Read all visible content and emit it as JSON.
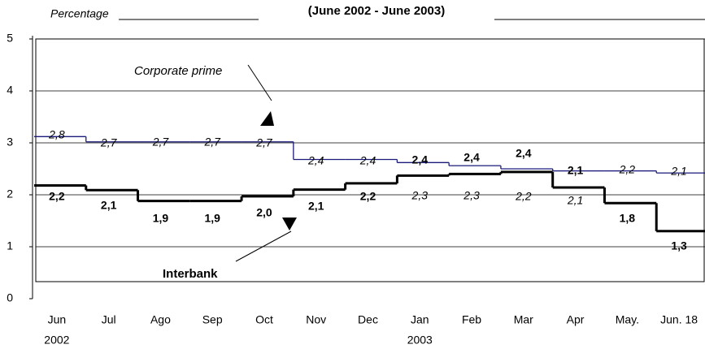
{
  "chart_data": {
    "type": "step-line",
    "title": "(June 2002 - June 2003)",
    "y_label": "Percentage",
    "categories": [
      "Jun",
      "Jul",
      "Ago",
      "Sep",
      "Oct",
      "Nov",
      "Dec",
      "Jan",
      "Feb",
      "Mar",
      "Apr",
      "May.",
      "Jun. 18"
    ],
    "x_sublabels": [
      "2002",
      null,
      null,
      null,
      null,
      null,
      null,
      "2003",
      null,
      null,
      null,
      null,
      null
    ],
    "ylim": [
      0,
      5
    ],
    "yticks": [
      0,
      1,
      2,
      3,
      4,
      5
    ],
    "grid": true,
    "series": [
      {
        "name": "Corporate prime",
        "color": "#1a1a7a",
        "values": [
          3.12,
          3.02,
          3.02,
          3.02,
          3.02,
          2.68,
          2.68,
          2.62,
          2.56,
          2.5,
          2.46,
          2.46,
          2.42
        ]
      },
      {
        "name": "Interbank",
        "color": "#000000",
        "values": [
          2.18,
          2.09,
          1.88,
          1.88,
          1.97,
          2.1,
          2.22,
          2.37,
          2.4,
          2.44,
          2.14,
          1.84,
          1.3
        ],
        "value_labels": [
          "2,2",
          "2,1",
          "1,9",
          "1,9",
          "2,0",
          "2,1",
          "2,2",
          "2,4",
          "2,4",
          "2,4",
          "2,1",
          "1,8",
          "1,3"
        ]
      }
    ],
    "annotations": [
      "2,8",
      "2,7",
      "2,7",
      "2,7",
      "2,7",
      "2,4",
      "2,4",
      "2,3",
      "2,3",
      "2,2",
      "2,1",
      "2,2",
      "2,1"
    ]
  }
}
